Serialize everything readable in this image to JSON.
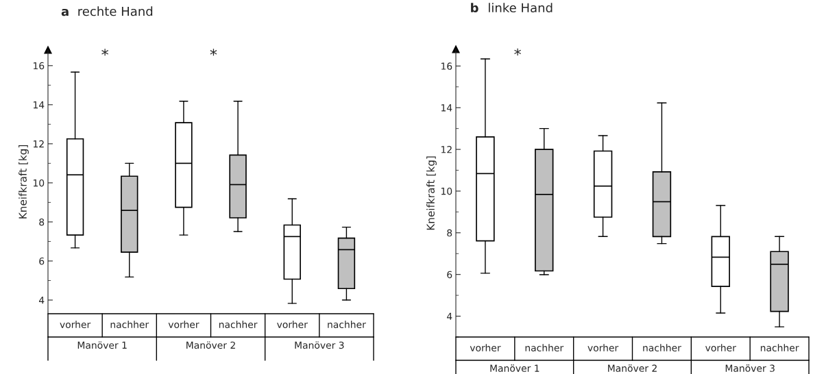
{
  "chart_data": [
    {
      "type": "box",
      "title": "a rechte Hand",
      "ylabel": "Kneifkraft [kg]",
      "categories": [
        "vorher",
        "nachher",
        "vorher",
        "nachher",
        "vorher",
        "nachher"
      ],
      "colors": [
        "#ffffff",
        "#c0c0c0",
        "#ffffff",
        "#c0c0c0",
        "#ffffff",
        "#c0c0c0"
      ],
      "boxes": [
        {
          "low": 6.67,
          "q1": 7.33,
          "median": 10.41,
          "q3": 12.25,
          "high": 15.67
        },
        {
          "low": 5.18,
          "q1": 6.45,
          "median": 8.59,
          "q3": 10.34,
          "high": 11.0
        },
        {
          "low": 7.33,
          "q1": 8.75,
          "median": 11.0,
          "q3": 13.08,
          "high": 14.18
        },
        {
          "low": 7.51,
          "q1": 8.21,
          "median": 9.91,
          "q3": 11.42,
          "high": 14.18
        },
        {
          "low": 3.83,
          "q1": 5.07,
          "median": 7.25,
          "q3": 7.84,
          "high": 9.18
        },
        {
          "low": 4.0,
          "q1": 4.59,
          "median": 6.58,
          "q3": 7.17,
          "high": 7.73
        }
      ],
      "ylim": [
        3.3,
        16.8
      ],
      "yticks": [
        4,
        6,
        8,
        10,
        12,
        14,
        16
      ],
      "grid": false,
      "annotations": [
        "Manöver 1",
        "Manöver 2",
        "Manöver 3",
        "*",
        "*"
      ]
    },
    {
      "type": "box",
      "title": "b linke Hand",
      "ylabel": "Kneifkraft [kg]",
      "categories": [
        "vorher",
        "nachher",
        "vorher",
        "nachher",
        "vorher",
        "nachher"
      ],
      "colors": [
        "#ffffff",
        "#c0c0c0",
        "#ffffff",
        "#c0c0c0",
        "#ffffff",
        "#c0c0c0"
      ],
      "boxes": [
        {
          "low": 6.06,
          "q1": 7.61,
          "median": 10.84,
          "q3": 12.6,
          "high": 16.34
        },
        {
          "low": 5.99,
          "q1": 6.17,
          "median": 9.84,
          "q3": 12.0,
          "high": 13.0
        },
        {
          "low": 7.82,
          "q1": 8.75,
          "median": 10.24,
          "q3": 11.92,
          "high": 12.66
        },
        {
          "low": 7.48,
          "q1": 7.82,
          "median": 9.49,
          "q3": 10.92,
          "high": 14.23
        },
        {
          "low": 4.15,
          "q1": 5.43,
          "median": 6.83,
          "q3": 7.82,
          "high": 9.31
        },
        {
          "low": 3.49,
          "q1": 4.23,
          "median": 6.49,
          "q3": 7.1,
          "high": 7.82
        }
      ],
      "ylim": [
        3.0,
        16.8
      ],
      "yticks": [
        4,
        6,
        8,
        10,
        12,
        14,
        16
      ],
      "grid": false,
      "annotations": [
        "Manöver 1",
        "Manöver 2",
        "Manöver 3",
        "*"
      ]
    }
  ]
}
